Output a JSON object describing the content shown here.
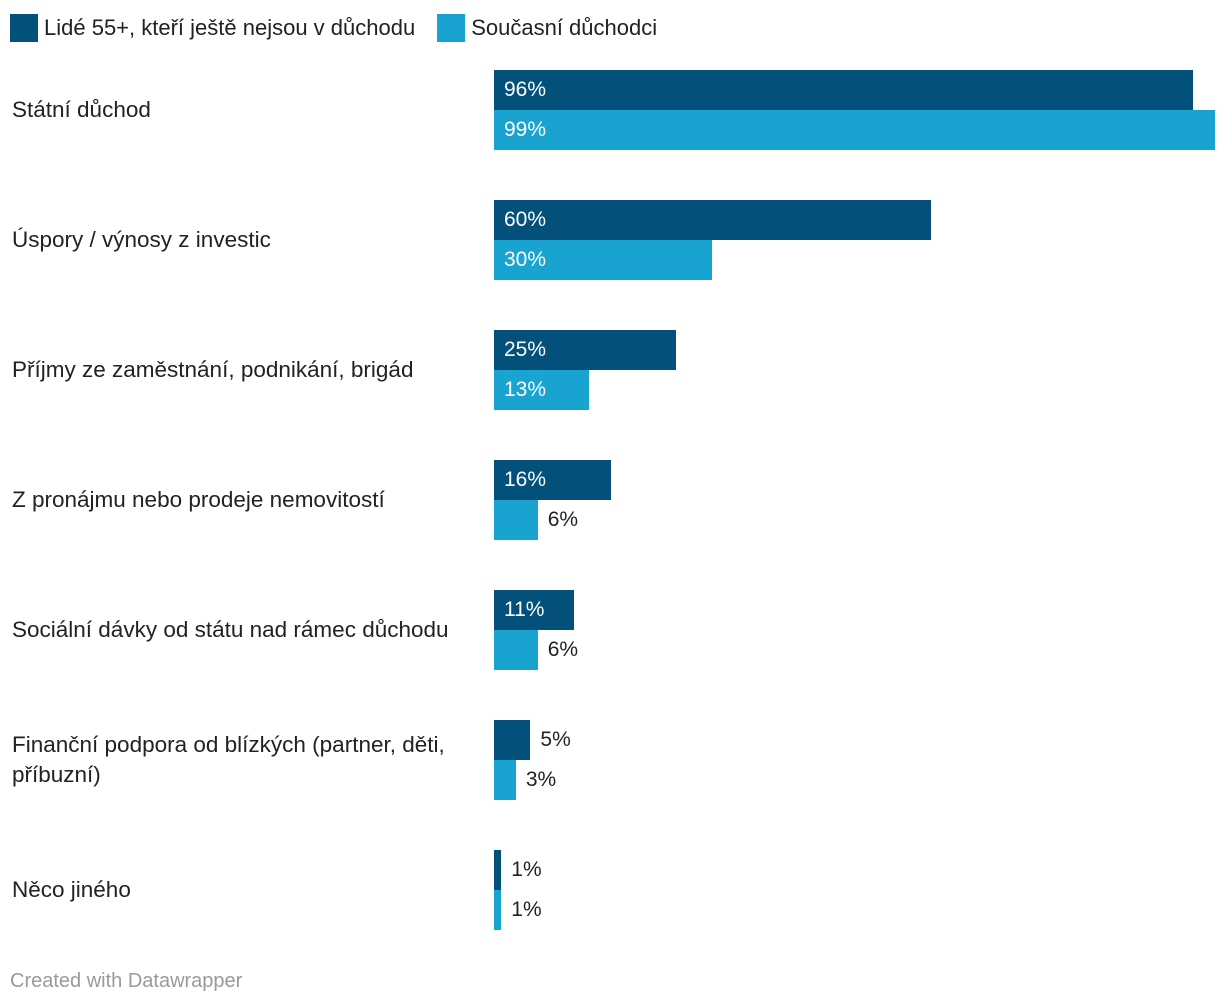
{
  "legend": {
    "series_a": "Lidé 55+, kteří ještě nejsou v důchodu",
    "series_b": "Současní důchodci"
  },
  "colors": {
    "series_a": "#03507a",
    "series_b": "#19a3d1"
  },
  "chart_data": {
    "type": "bar",
    "orientation": "horizontal",
    "categories": [
      "Státní důchod",
      "Úspory / výnosy z investic",
      "Příjmy ze zaměstnání, podnikání, brigád",
      "Z pronájmu nebo prodeje nemovitostí",
      "Sociální dávky od státu nad rámec důchodu",
      "Finanční podpora od blízkých (partner, děti, příbuzní)",
      "Něco jiného"
    ],
    "series": [
      {
        "name": "Lidé 55+, kteří ještě nejsou v důchodu",
        "values": [
          96,
          60,
          25,
          16,
          11,
          5,
          1
        ]
      },
      {
        "name": "Současní důchodci",
        "values": [
          99,
          30,
          13,
          6,
          6,
          3,
          1
        ]
      }
    ],
    "value_suffix": "%",
    "xlim": [
      0,
      100
    ],
    "title": "",
    "xlabel": "",
    "ylabel": ""
  },
  "footer": {
    "credit": "Created with Datawrapper"
  }
}
